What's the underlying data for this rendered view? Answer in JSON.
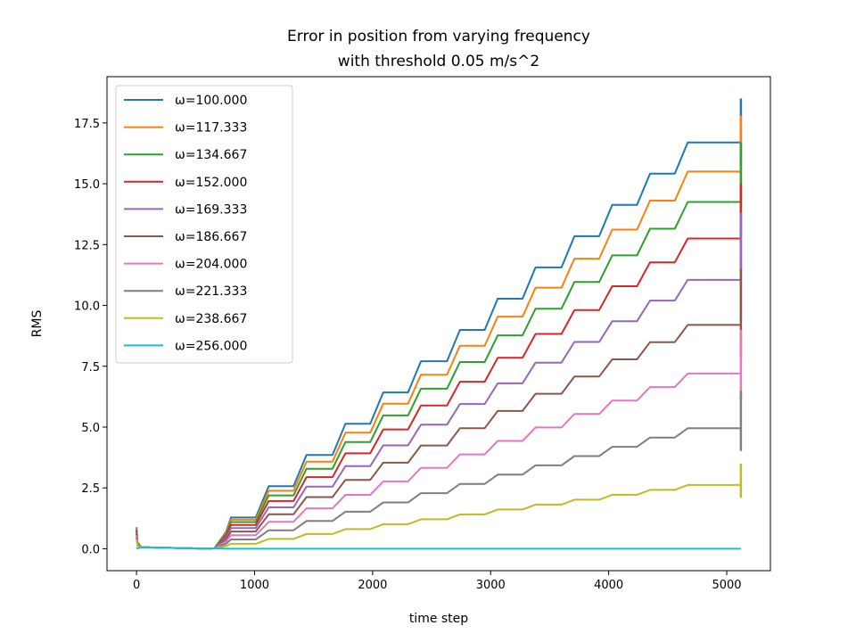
{
  "chart_data": {
    "type": "line",
    "title": "Error in position from varying frequency",
    "subtitle": "with threshold 0.05 m/s^2",
    "xlabel": "time step",
    "ylabel": "RMS",
    "xlim": [
      -250,
      5370
    ],
    "ylim": [
      -0.9,
      19.4
    ],
    "xticks": [
      0,
      1000,
      2000,
      3000,
      4000,
      5000
    ],
    "yticks": [
      0.0,
      2.5,
      5.0,
      7.5,
      10.0,
      12.5,
      15.0,
      17.5
    ],
    "xtick_labels": [
      "0",
      "1000",
      "2000",
      "3000",
      "4000",
      "5000"
    ],
    "ytick_labels": [
      "0.0",
      "2.5",
      "5.0",
      "7.5",
      "10.0",
      "12.5",
      "15.0",
      "17.5"
    ],
    "grid": false,
    "legend_position": "top-left",
    "series": [
      {
        "name": "ω=100.000",
        "color": "#1f77b4",
        "final_value": 16.7,
        "end_spike": 18.5
      },
      {
        "name": "ω=117.333",
        "color": "#ff7f0e",
        "final_value": 15.5,
        "end_spike": 17.8
      },
      {
        "name": "ω=134.667",
        "color": "#2ca02c",
        "final_value": 14.25,
        "end_spike": 16.7
      },
      {
        "name": "ω=152.000",
        "color": "#d62728",
        "final_value": 12.75,
        "end_spike": 15.0
      },
      {
        "name": "ω=169.333",
        "color": "#9467bd",
        "final_value": 11.05,
        "end_spike": 13.8
      },
      {
        "name": "ω=186.667",
        "color": "#8c564b",
        "final_value": 9.2,
        "end_spike": 11.5
      },
      {
        "name": "ω=204.000",
        "color": "#e377c2",
        "final_value": 7.2,
        "end_spike": 9.0
      },
      {
        "name": "ω=221.333",
        "color": "#7f7f7f",
        "final_value": 4.95,
        "end_spike": 6.5
      },
      {
        "name": "ω=238.667",
        "color": "#bcbd22",
        "final_value": 2.62,
        "end_spike": 3.5
      },
      {
        "name": "ω=256.000",
        "color": "#17becf",
        "final_value": 0.0,
        "end_spike": 0.0
      }
    ],
    "step_times": [
      800,
      1120,
      1440,
      1770,
      2090,
      2410,
      2740,
      3060,
      3380,
      3710,
      4030,
      4350,
      4670
    ],
    "x_end": 5120
  }
}
